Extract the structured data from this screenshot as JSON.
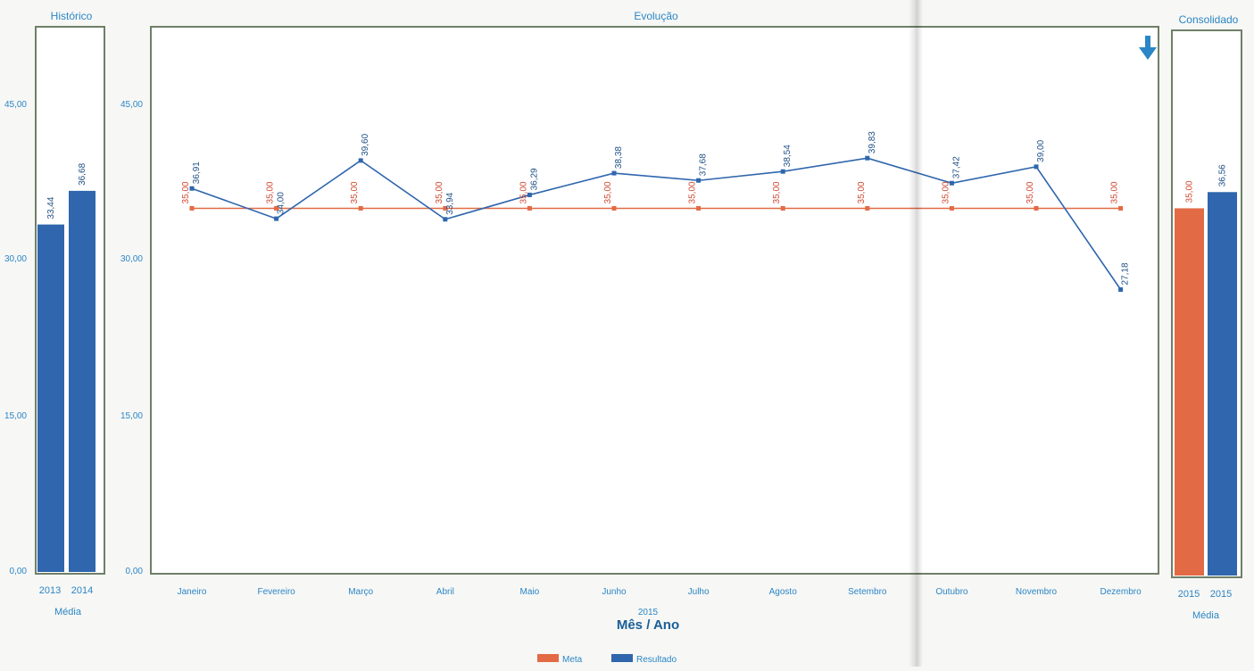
{
  "colors": {
    "meta": "#e26a45",
    "resultado": "#2f66ad",
    "text_blue": "#2a86c6",
    "frame": "#6f7f67"
  },
  "panels": {
    "historico_title": "Histórico",
    "evolucao_title": "Evolução",
    "consolidado_title": "Consolidado"
  },
  "download_icon": "arrow-down-icon",
  "x_axis": {
    "year": "2015",
    "title": "Mês / Ano",
    "media_label": "Média"
  },
  "legend": {
    "meta": "Meta",
    "resultado": "Resultado"
  },
  "chart_data": [
    {
      "type": "bar",
      "title": "Histórico",
      "categories": [
        "2013",
        "2014"
      ],
      "values": [
        33.44,
        36.68
      ],
      "value_labels": [
        "33,44",
        "36,68"
      ],
      "xlabel": "Média",
      "ylim": [
        0,
        54
      ],
      "yticks": [
        "0,00",
        "15,00",
        "30,00",
        "45,00"
      ]
    },
    {
      "type": "line",
      "title": "Evolução",
      "categories": [
        "Janeiro",
        "Fevereiro",
        "Março",
        "Abril",
        "Maio",
        "Junho",
        "Julho",
        "Agosto",
        "Setembro",
        "Outubro",
        "Novembro",
        "Dezembro"
      ],
      "xlabel": "Mês / Ano",
      "xlabel_sub": "2015",
      "ylim": [
        0,
        54
      ],
      "yticks": [
        "0,00",
        "15,00",
        "30,00",
        "45,00"
      ],
      "series": [
        {
          "name": "Meta",
          "values": [
            35,
            35,
            35,
            35,
            35,
            35,
            35,
            35,
            35,
            35,
            35,
            35
          ],
          "labels": [
            "35,00",
            "35,00",
            "35,00",
            "35,00",
            "35,00",
            "35,00",
            "35,00",
            "35,00",
            "35,00",
            "35,00",
            "35,00",
            "35,00"
          ]
        },
        {
          "name": "Resultado",
          "values": [
            36.91,
            34.0,
            39.6,
            33.94,
            36.29,
            38.38,
            37.68,
            38.54,
            39.83,
            37.42,
            39.0,
            27.18
          ],
          "labels": [
            "36,91",
            "34,00",
            "39,60",
            "33,94",
            "36,29",
            "38,38",
            "37,68",
            "38,54",
            "39,83",
            "37,42",
            "39,00",
            "27,18"
          ]
        }
      ]
    },
    {
      "type": "bar",
      "title": "Consolidado",
      "categories": [
        "2015",
        "2015"
      ],
      "series_names": [
        "Meta",
        "Resultado"
      ],
      "values": [
        35.0,
        36.56
      ],
      "value_labels": [
        "35,00",
        "36,56"
      ],
      "xlabel": "Média",
      "ylim": [
        0,
        54
      ]
    }
  ]
}
